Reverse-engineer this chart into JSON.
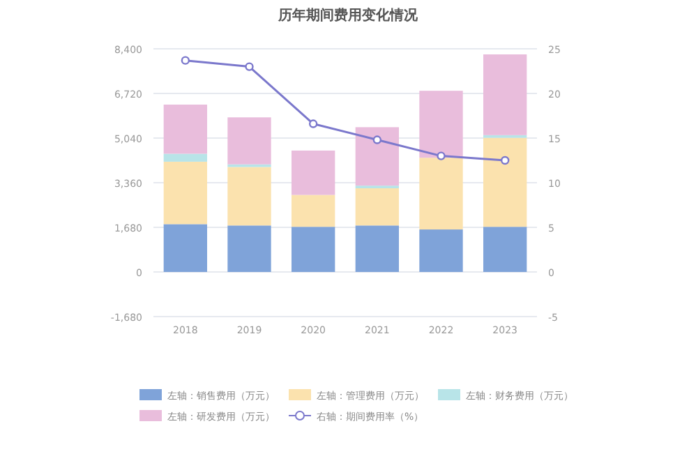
{
  "chart_data": {
    "type": "bar",
    "title": "历年期间费用变化情况",
    "categories": [
      "2018",
      "2019",
      "2020",
      "2021",
      "2022",
      "2023"
    ],
    "stacked": true,
    "series": [
      {
        "name": "左轴：销售费用（万元）",
        "color": "#7fa3d9",
        "values": [
          1800,
          1750,
          1700,
          1750,
          1600,
          1700
        ]
      },
      {
        "name": "左轴：管理费用（万元）",
        "color": "#fbe2ae",
        "values": [
          2350,
          2200,
          1200,
          1400,
          2700,
          3350
        ]
      },
      {
        "name": "左轴：财务费用（万元）",
        "color": "#b8e4e8",
        "values": [
          300,
          100,
          null,
          100,
          null,
          100
        ]
      },
      {
        "name": "左轴：研发费用（万元）",
        "color": "#e9bddc",
        "values": [
          1850,
          1770,
          1670,
          2200,
          2520,
          3040
        ]
      },
      {
        "name": "右轴：期间费用率（%）",
        "type": "line",
        "axis": "y2",
        "color": "#7b78cc",
        "marker": "circle",
        "values": [
          23.7,
          23.0,
          16.6,
          14.8,
          13.0,
          12.5
        ]
      }
    ],
    "ylim": [
      -1680,
      8400
    ],
    "yticks": [
      {
        "value": -1680,
        "label": "-1,680"
      },
      0,
      {
        "value": 1680,
        "label": "1,680"
      },
      {
        "value": 3360,
        "label": "3,360"
      },
      {
        "value": 5040,
        "label": "5,040"
      },
      {
        "value": 6720,
        "label": "6,720"
      },
      {
        "value": 8400,
        "label": "8,400"
      }
    ],
    "y2lim": [
      -5,
      25
    ],
    "y2ticks": [
      -5,
      0,
      5,
      10,
      15,
      20,
      25
    ],
    "grid": "y",
    "legend": "bottom"
  }
}
